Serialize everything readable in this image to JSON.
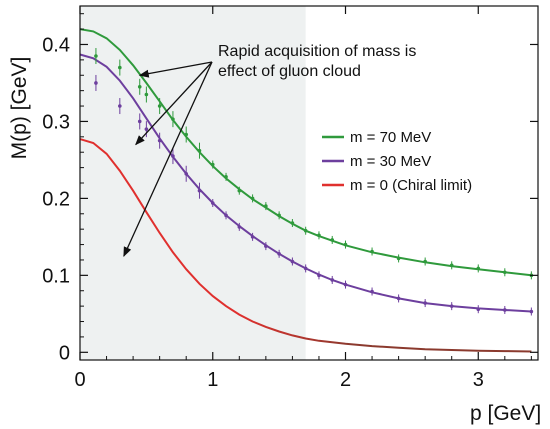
{
  "chart_data": {
    "type": "line",
    "title": "",
    "xlabel": "p [GeV]",
    "ylabel": "M(p) [GeV]",
    "xlim": [
      0,
      3.45
    ],
    "ylim": [
      -0.01,
      0.45
    ],
    "x_ticks": [
      0,
      1,
      2,
      3
    ],
    "y_ticks": [
      0,
      0.1,
      0.2,
      0.3,
      0.4
    ],
    "x_tick_labels": [
      "0",
      "1",
      "2",
      "3"
    ],
    "y_tick_labels": [
      "0",
      "0.1",
      "0.2",
      "0.3",
      "0.4"
    ],
    "grid": false,
    "shaded_region": {
      "x_from": 0,
      "x_to": 1.7,
      "color": "#eef1f1"
    },
    "legend_position": "right",
    "series": [
      {
        "name": "m = 70 MeV",
        "color": "#2f9a3c",
        "curve": [
          [
            0,
            0.42
          ],
          [
            0.1,
            0.417
          ],
          [
            0.2,
            0.408
          ],
          [
            0.3,
            0.393
          ],
          [
            0.4,
            0.373
          ],
          [
            0.5,
            0.35
          ],
          [
            0.6,
            0.326
          ],
          [
            0.7,
            0.302
          ],
          [
            0.8,
            0.28
          ],
          [
            0.9,
            0.26
          ],
          [
            1.0,
            0.242
          ],
          [
            1.1,
            0.226
          ],
          [
            1.2,
            0.212
          ],
          [
            1.3,
            0.199
          ],
          [
            1.4,
            0.188
          ],
          [
            1.5,
            0.177
          ],
          [
            1.6,
            0.167
          ],
          [
            1.7,
            0.158
          ],
          [
            1.8,
            0.151
          ],
          [
            1.9,
            0.145
          ],
          [
            2.0,
            0.139
          ],
          [
            2.2,
            0.13
          ],
          [
            2.4,
            0.123
          ],
          [
            2.6,
            0.117
          ],
          [
            2.8,
            0.112
          ],
          [
            3.0,
            0.108
          ],
          [
            3.2,
            0.104
          ],
          [
            3.4,
            0.1
          ]
        ],
        "points": [
          [
            0.12,
            0.385
          ],
          [
            0.3,
            0.37
          ],
          [
            0.45,
            0.345
          ],
          [
            0.5,
            0.335
          ],
          [
            0.6,
            0.32
          ],
          [
            0.7,
            0.303
          ],
          [
            0.8,
            0.283
          ],
          [
            0.9,
            0.262
          ],
          [
            1.0,
            0.244
          ],
          [
            1.1,
            0.228
          ],
          [
            1.2,
            0.21
          ],
          [
            1.3,
            0.2
          ],
          [
            1.4,
            0.19
          ],
          [
            1.5,
            0.178
          ],
          [
            1.6,
            0.168
          ],
          [
            1.7,
            0.158
          ],
          [
            1.8,
            0.152
          ],
          [
            1.9,
            0.146
          ],
          [
            2.0,
            0.14
          ],
          [
            2.2,
            0.131
          ],
          [
            2.4,
            0.122
          ],
          [
            2.6,
            0.118
          ],
          [
            2.8,
            0.113
          ],
          [
            3.0,
            0.109
          ],
          [
            3.2,
            0.104
          ],
          [
            3.4,
            0.1
          ]
        ]
      },
      {
        "name": "m = 30 MeV",
        "color": "#6d3f9e",
        "curve": [
          [
            0,
            0.387
          ],
          [
            0.1,
            0.382
          ],
          [
            0.2,
            0.371
          ],
          [
            0.3,
            0.353
          ],
          [
            0.4,
            0.33
          ],
          [
            0.5,
            0.304
          ],
          [
            0.6,
            0.278
          ],
          [
            0.7,
            0.254
          ],
          [
            0.8,
            0.232
          ],
          [
            0.9,
            0.212
          ],
          [
            1.0,
            0.194
          ],
          [
            1.1,
            0.178
          ],
          [
            1.2,
            0.164
          ],
          [
            1.3,
            0.151
          ],
          [
            1.4,
            0.139
          ],
          [
            1.5,
            0.128
          ],
          [
            1.6,
            0.118
          ],
          [
            1.7,
            0.109
          ],
          [
            1.8,
            0.101
          ],
          [
            1.9,
            0.094
          ],
          [
            2.0,
            0.088
          ],
          [
            2.2,
            0.078
          ],
          [
            2.4,
            0.07
          ],
          [
            2.6,
            0.064
          ],
          [
            2.8,
            0.06
          ],
          [
            3.0,
            0.057
          ],
          [
            3.2,
            0.055
          ],
          [
            3.4,
            0.053
          ]
        ],
        "points": [
          [
            0.12,
            0.35
          ],
          [
            0.3,
            0.32
          ],
          [
            0.45,
            0.3
          ],
          [
            0.5,
            0.29
          ],
          [
            0.6,
            0.275
          ],
          [
            0.7,
            0.255
          ],
          [
            0.8,
            0.232
          ],
          [
            0.9,
            0.21
          ],
          [
            1.0,
            0.194
          ],
          [
            1.1,
            0.178
          ],
          [
            1.2,
            0.163
          ],
          [
            1.3,
            0.15
          ],
          [
            1.4,
            0.138
          ],
          [
            1.5,
            0.128
          ],
          [
            1.6,
            0.118
          ],
          [
            1.7,
            0.109
          ],
          [
            1.8,
            0.1
          ],
          [
            1.9,
            0.094
          ],
          [
            2.0,
            0.088
          ],
          [
            2.2,
            0.079
          ],
          [
            2.4,
            0.07
          ],
          [
            2.6,
            0.064
          ],
          [
            2.8,
            0.06
          ],
          [
            3.0,
            0.056
          ],
          [
            3.2,
            0.055
          ],
          [
            3.4,
            0.053
          ]
        ]
      },
      {
        "name": "m = 0 (Chiral limit)",
        "color": "#e0302e",
        "color_tail": "#8b3a2e",
        "curve": [
          [
            0,
            0.277
          ],
          [
            0.1,
            0.272
          ],
          [
            0.2,
            0.258
          ],
          [
            0.3,
            0.236
          ],
          [
            0.4,
            0.21
          ],
          [
            0.5,
            0.182
          ],
          [
            0.6,
            0.155
          ],
          [
            0.7,
            0.13
          ],
          [
            0.8,
            0.108
          ],
          [
            0.9,
            0.089
          ],
          [
            1.0,
            0.073
          ],
          [
            1.1,
            0.06
          ],
          [
            1.2,
            0.049
          ],
          [
            1.3,
            0.04
          ],
          [
            1.4,
            0.033
          ],
          [
            1.5,
            0.027
          ],
          [
            1.6,
            0.022
          ],
          [
            1.7,
            0.018
          ],
          [
            1.8,
            0.015
          ],
          [
            1.9,
            0.013
          ],
          [
            2.0,
            0.011
          ],
          [
            2.2,
            0.008
          ],
          [
            2.4,
            0.006
          ],
          [
            2.6,
            0.004
          ],
          [
            2.8,
            0.003
          ],
          [
            3.0,
            0.002
          ],
          [
            3.2,
            0.0015
          ],
          [
            3.4,
            0.001
          ]
        ]
      }
    ],
    "annotation": {
      "text_lines": [
        "Rapid acquisition of mass is",
        "effect of gluon cloud"
      ],
      "arrow_targets": [
        [
          0.45,
          0.36
        ],
        [
          0.42,
          0.27
        ],
        [
          0.33,
          0.125
        ]
      ]
    }
  }
}
